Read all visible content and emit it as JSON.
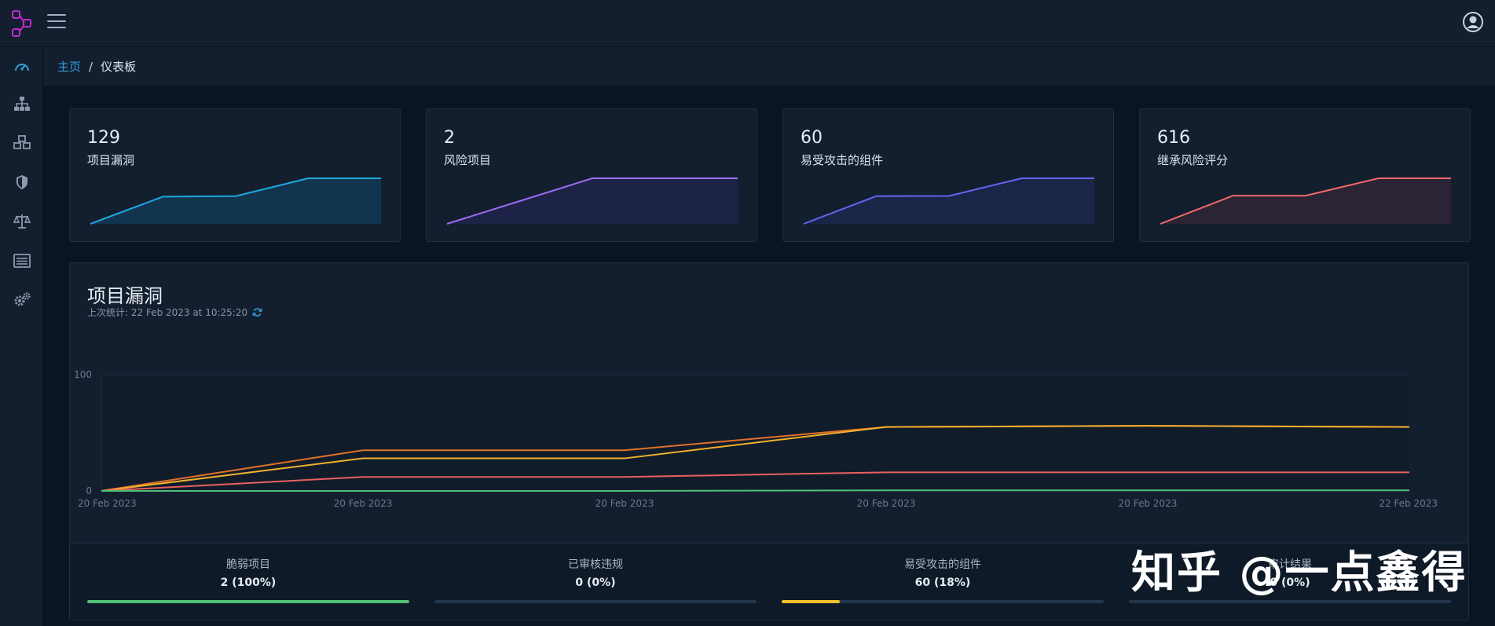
{
  "breadcrumb": {
    "home": "主页",
    "separator": "/",
    "current": "仪表板"
  },
  "sidebar": {
    "items": [
      {
        "icon": "dashboard-gauge-icon",
        "active": true
      },
      {
        "icon": "sitemap-icon",
        "active": false
      },
      {
        "icon": "cubes-icon",
        "active": false
      },
      {
        "icon": "shield-icon",
        "active": false
      },
      {
        "icon": "balance-scale-icon",
        "active": false
      },
      {
        "icon": "list-alt-icon",
        "active": false
      },
      {
        "icon": "cogs-icon",
        "active": false
      }
    ]
  },
  "colors": {
    "accent": "#2f9fdc",
    "card1": "#1ea8df",
    "card2": "#9d6bf2",
    "card3": "#6466f1",
    "card4": "#f0696b",
    "critical": "#e0712a",
    "high": "#f2b02c",
    "medium": "#e8605f",
    "low": "#4fc178",
    "bar_green": "#4fc178",
    "bar_yellow": "#f2c12e"
  },
  "cards": [
    {
      "value": "129",
      "label": "项目漏洞",
      "color": "#1ea8df",
      "fill": "#12354f",
      "spark": [
        0,
        58,
        59,
        97,
        97
      ]
    },
    {
      "value": "2",
      "label": "风险项目",
      "color": "#9d6bf2",
      "fill": "#1d2346",
      "spark": [
        0,
        0.6,
        1.2,
        1.2,
        1.2
      ]
    },
    {
      "value": "60",
      "label": "易受攻击的组件",
      "color": "#6466f1",
      "fill": "#1a2548",
      "spark": [
        0,
        28,
        28.2,
        46,
        46
      ]
    },
    {
      "value": "616",
      "label": "继承风险评分",
      "color": "#f0696b",
      "fill": "#2b2434",
      "spark": [
        0,
        300,
        300,
        485,
        485
      ]
    }
  ],
  "panel": {
    "title": "项目漏洞",
    "subtitle": "上次统计: 22 Feb 2023 at 10:25:20"
  },
  "chart_data": {
    "type": "line",
    "x": [
      "20 Feb 2023",
      "20 Feb 2023",
      "20 Feb 2023",
      "20 Feb 2023",
      "20 Feb 2023",
      "22 Feb 2023"
    ],
    "ylim": [
      0,
      100
    ],
    "yticks": [
      0,
      100
    ],
    "series": [
      {
        "values": [
          0,
          35,
          35,
          55,
          56,
          55
        ],
        "color": "#e0712a"
      },
      {
        "values": [
          0,
          28,
          28,
          55,
          56,
          55
        ],
        "color": "#f2b02c"
      },
      {
        "values": [
          0,
          12,
          12,
          16,
          16,
          16
        ],
        "color": "#e8605f"
      },
      {
        "values": [
          0,
          0,
          0,
          0.5,
          0.5,
          0.5
        ],
        "color": "#4fc178"
      }
    ],
    "grid": true
  },
  "metrics": [
    {
      "label": "脆弱项目",
      "value": "2 (100%)",
      "percent": 100,
      "color": "#4fc178"
    },
    {
      "label": "已审核违规",
      "value": "0 (0%)",
      "percent": 0,
      "color": "#4fc178"
    },
    {
      "label": "易受攻击的组件",
      "value": "60 (18%)",
      "percent": 18,
      "color": "#f2c12e"
    },
    {
      "label": "审计结果",
      "value": "0 (0%)",
      "percent": 0,
      "color": "#4fc178"
    }
  ],
  "watermark": "知乎 @一点鑫得"
}
